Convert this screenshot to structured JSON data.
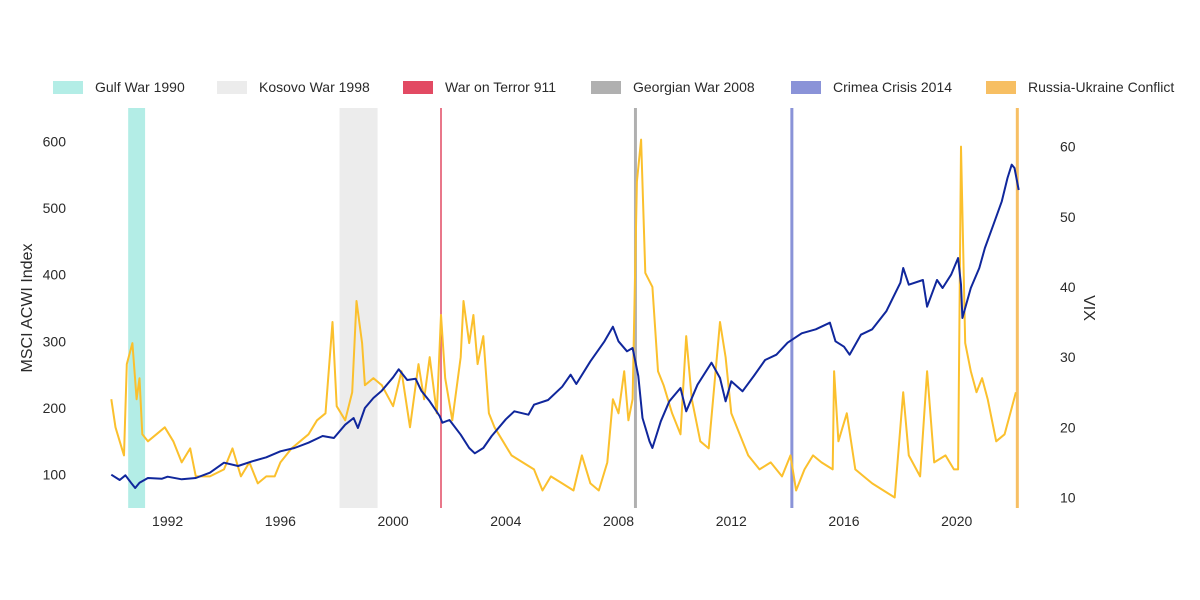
{
  "chart_data": {
    "type": "line",
    "title": "",
    "x_axis": {
      "ticks": [
        "1992",
        "1996",
        "2000",
        "2004",
        "2008",
        "2012",
        "2016",
        "2020"
      ],
      "range": [
        1989.6,
        2022.6
      ]
    },
    "y_left": {
      "label": "MSCI ACWI Index",
      "ticks": [
        "100",
        "200",
        "300",
        "400",
        "500",
        "600"
      ],
      "range": [
        50,
        650
      ]
    },
    "y_right": {
      "label": "VIX",
      "ticks": [
        "10",
        "20",
        "30",
        "40",
        "50",
        "60"
      ],
      "range": [
        8.5,
        65.5
      ]
    },
    "legend_position": "top",
    "events": [
      {
        "name": "Gulf War 1990",
        "start": 1990.6,
        "end": 1991.2,
        "color": "#b3ede6"
      },
      {
        "name": "Kosovo War 1998",
        "start": 1998.1,
        "end": 1999.45,
        "color": "#ececec"
      },
      {
        "name": "War on Terror 911",
        "start": 2001.7,
        "end": 2001.7,
        "color": "#e24a63"
      },
      {
        "name": "Georgian War 2008",
        "start": 2008.6,
        "end": 2008.6,
        "color": "#b0b0b0"
      },
      {
        "name": "Crimea Crisis 2014",
        "start": 2014.15,
        "end": 2014.15,
        "color": "#8a93d8"
      },
      {
        "name": "Russia-Ukraine Conflict",
        "start": 2022.15,
        "end": 2022.15,
        "color": "#f7bf63"
      }
    ],
    "series": [
      {
        "name": "MSCI ACWI Index",
        "axis": "left",
        "color": "#10279c",
        "points": [
          [
            1990,
            100
          ],
          [
            1990.3,
            92
          ],
          [
            1990.5,
            99
          ],
          [
            1990.7,
            88
          ],
          [
            1990.85,
            80
          ],
          [
            1991,
            88
          ],
          [
            1991.3,
            95
          ],
          [
            1991.8,
            94
          ],
          [
            1992,
            97
          ],
          [
            1992.5,
            93
          ],
          [
            1993,
            95
          ],
          [
            1993.5,
            103
          ],
          [
            1994,
            118
          ],
          [
            1994.5,
            113
          ],
          [
            1995,
            120
          ],
          [
            1995.5,
            126
          ],
          [
            1996,
            135
          ],
          [
            1996.5,
            140
          ],
          [
            1997,
            148
          ],
          [
            1997.5,
            158
          ],
          [
            1997.9,
            155
          ],
          [
            1998.3,
            175
          ],
          [
            1998.6,
            185
          ],
          [
            1998.75,
            170
          ],
          [
            1999,
            200
          ],
          [
            1999.3,
            215
          ],
          [
            1999.6,
            226
          ],
          [
            2000,
            246
          ],
          [
            2000.2,
            258
          ],
          [
            2000.5,
            242
          ],
          [
            2000.8,
            244
          ],
          [
            2001,
            226
          ],
          [
            2001.3,
            210
          ],
          [
            2001.65,
            188
          ],
          [
            2001.75,
            178
          ],
          [
            2002,
            182
          ],
          [
            2002.4,
            160
          ],
          [
            2002.7,
            140
          ],
          [
            2002.9,
            132
          ],
          [
            2003.2,
            140
          ],
          [
            2003.5,
            158
          ],
          [
            2004,
            183
          ],
          [
            2004.3,
            195
          ],
          [
            2004.8,
            190
          ],
          [
            2005,
            205
          ],
          [
            2005.5,
            212
          ],
          [
            2006,
            232
          ],
          [
            2006.3,
            250
          ],
          [
            2006.5,
            236
          ],
          [
            2007,
            270
          ],
          [
            2007.5,
            300
          ],
          [
            2007.8,
            322
          ],
          [
            2008,
            300
          ],
          [
            2008.3,
            285
          ],
          [
            2008.5,
            290
          ],
          [
            2008.7,
            248
          ],
          [
            2008.85,
            185
          ],
          [
            2009.1,
            150
          ],
          [
            2009.2,
            140
          ],
          [
            2009.5,
            180
          ],
          [
            2009.8,
            210
          ],
          [
            2010.2,
            230
          ],
          [
            2010.4,
            195
          ],
          [
            2010.8,
            235
          ],
          [
            2011.3,
            268
          ],
          [
            2011.6,
            245
          ],
          [
            2011.8,
            210
          ],
          [
            2012,
            240
          ],
          [
            2012.4,
            225
          ],
          [
            2012.8,
            248
          ],
          [
            2013.2,
            272
          ],
          [
            2013.6,
            280
          ],
          [
            2014,
            298
          ],
          [
            2014.5,
            312
          ],
          [
            2015,
            318
          ],
          [
            2015.5,
            328
          ],
          [
            2015.7,
            300
          ],
          [
            2016,
            292
          ],
          [
            2016.2,
            280
          ],
          [
            2016.6,
            310
          ],
          [
            2017,
            318
          ],
          [
            2017.5,
            345
          ],
          [
            2018,
            388
          ],
          [
            2018.1,
            410
          ],
          [
            2018.3,
            385
          ],
          [
            2018.8,
            392
          ],
          [
            2018.95,
            352
          ],
          [
            2019.3,
            392
          ],
          [
            2019.5,
            380
          ],
          [
            2019.8,
            400
          ],
          [
            2020.05,
            425
          ],
          [
            2020.15,
            385
          ],
          [
            2020.2,
            335
          ],
          [
            2020.5,
            380
          ],
          [
            2020.8,
            410
          ],
          [
            2021,
            440
          ],
          [
            2021.3,
            475
          ],
          [
            2021.6,
            510
          ],
          [
            2021.8,
            545
          ],
          [
            2021.95,
            565
          ],
          [
            2022.05,
            560
          ],
          [
            2022.2,
            527
          ]
        ]
      },
      {
        "name": "VIX",
        "axis": "right",
        "color": "#fbc02d",
        "points": [
          [
            1990,
            24
          ],
          [
            1990.15,
            20
          ],
          [
            1990.3,
            18
          ],
          [
            1990.45,
            16
          ],
          [
            1990.55,
            29
          ],
          [
            1990.75,
            32
          ],
          [
            1990.9,
            24
          ],
          [
            1991,
            27
          ],
          [
            1991.1,
            19
          ],
          [
            1991.3,
            18
          ],
          [
            1991.6,
            19
          ],
          [
            1991.9,
            20
          ],
          [
            1992.2,
            18
          ],
          [
            1992.5,
            15
          ],
          [
            1992.8,
            17
          ],
          [
            1993,
            13
          ],
          [
            1993.5,
            13
          ],
          [
            1994,
            14
          ],
          [
            1994.3,
            17
          ],
          [
            1994.6,
            13
          ],
          [
            1994.9,
            15
          ],
          [
            1995.2,
            12
          ],
          [
            1995.5,
            13
          ],
          [
            1995.8,
            13
          ],
          [
            1996,
            15
          ],
          [
            1996.4,
            17
          ],
          [
            1996.7,
            18
          ],
          [
            1997,
            19
          ],
          [
            1997.3,
            21
          ],
          [
            1997.6,
            22
          ],
          [
            1997.85,
            35
          ],
          [
            1998,
            23
          ],
          [
            1998.3,
            21
          ],
          [
            1998.55,
            25
          ],
          [
            1998.7,
            38
          ],
          [
            1998.9,
            32
          ],
          [
            1999,
            26
          ],
          [
            1999.3,
            27
          ],
          [
            1999.6,
            26
          ],
          [
            2000,
            23
          ],
          [
            2000.3,
            28
          ],
          [
            2000.6,
            20
          ],
          [
            2000.9,
            29
          ],
          [
            2001.1,
            24
          ],
          [
            2001.3,
            30
          ],
          [
            2001.55,
            22
          ],
          [
            2001.7,
            36
          ],
          [
            2001.85,
            27
          ],
          [
            2002.1,
            21
          ],
          [
            2002.4,
            30
          ],
          [
            2002.5,
            38
          ],
          [
            2002.7,
            32
          ],
          [
            2002.85,
            36
          ],
          [
            2003,
            29
          ],
          [
            2003.2,
            33
          ],
          [
            2003.4,
            22
          ],
          [
            2003.6,
            20
          ],
          [
            2003.9,
            18
          ],
          [
            2004.2,
            16
          ],
          [
            2004.6,
            15
          ],
          [
            2005,
            14
          ],
          [
            2005.3,
            11
          ],
          [
            2005.6,
            13
          ],
          [
            2006,
            12
          ],
          [
            2006.4,
            11
          ],
          [
            2006.7,
            16
          ],
          [
            2007,
            12
          ],
          [
            2007.3,
            11
          ],
          [
            2007.6,
            15
          ],
          [
            2007.8,
            24
          ],
          [
            2008,
            22
          ],
          [
            2008.2,
            28
          ],
          [
            2008.35,
            21
          ],
          [
            2008.5,
            24
          ],
          [
            2008.65,
            55
          ],
          [
            2008.8,
            61
          ],
          [
            2008.95,
            42
          ],
          [
            2009.2,
            40
          ],
          [
            2009.4,
            28
          ],
          [
            2009.6,
            26
          ],
          [
            2009.9,
            22
          ],
          [
            2010.2,
            19
          ],
          [
            2010.4,
            33
          ],
          [
            2010.6,
            24
          ],
          [
            2010.9,
            18
          ],
          [
            2011.2,
            17
          ],
          [
            2011.6,
            35
          ],
          [
            2011.8,
            30
          ],
          [
            2012,
            22
          ],
          [
            2012.3,
            19
          ],
          [
            2012.6,
            16
          ],
          [
            2013,
            14
          ],
          [
            2013.4,
            15
          ],
          [
            2013.8,
            13
          ],
          [
            2014.1,
            16
          ],
          [
            2014.3,
            11
          ],
          [
            2014.6,
            14
          ],
          [
            2014.9,
            16
          ],
          [
            2015.2,
            15
          ],
          [
            2015.6,
            14
          ],
          [
            2015.65,
            28
          ],
          [
            2015.8,
            18
          ],
          [
            2016.1,
            22
          ],
          [
            2016.4,
            14
          ],
          [
            2016.7,
            13
          ],
          [
            2017,
            12
          ],
          [
            2017.4,
            11
          ],
          [
            2017.8,
            10
          ],
          [
            2018.1,
            25
          ],
          [
            2018.3,
            16
          ],
          [
            2018.7,
            13
          ],
          [
            2018.95,
            28
          ],
          [
            2019.2,
            15
          ],
          [
            2019.6,
            16
          ],
          [
            2019.9,
            14
          ],
          [
            2020.05,
            14
          ],
          [
            2020.15,
            60
          ],
          [
            2020.3,
            32
          ],
          [
            2020.5,
            28
          ],
          [
            2020.7,
            25
          ],
          [
            2020.9,
            27
          ],
          [
            2021.1,
            24
          ],
          [
            2021.4,
            18
          ],
          [
            2021.7,
            19
          ],
          [
            2021.9,
            22
          ],
          [
            2022.1,
            25
          ]
        ]
      }
    ]
  }
}
